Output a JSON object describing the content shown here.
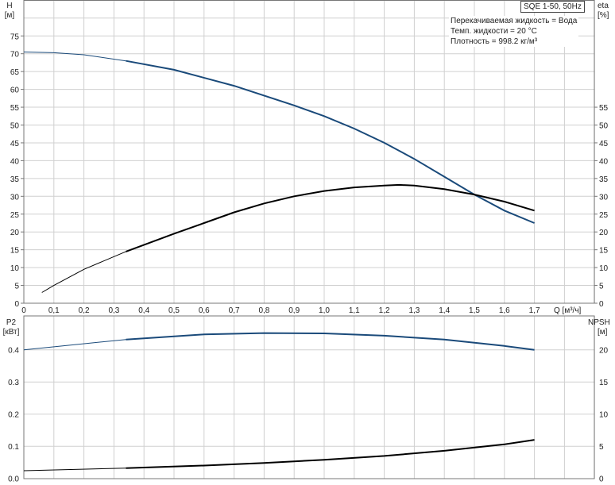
{
  "model_label": "SQE 1-50, 50Hz",
  "legend_lines": [
    "Перекачиваемая жидкость = Вода",
    "Темп. жидкости = 20 °C",
    "Плотность = 998.2 кг/м³"
  ],
  "chart_data": [
    {
      "type": "line",
      "xlabel": "Q [м³/ч]",
      "ylabel_left": [
        "H",
        "[м]"
      ],
      "ylabel_right": [
        "eta",
        "[%]"
      ],
      "xlim": [
        0,
        1.9
      ],
      "x_ticks": [
        "0",
        "0,1",
        "0,2",
        "0,3",
        "0,4",
        "0,5",
        "0,6",
        "0,7",
        "0,8",
        "0,9",
        "1,0",
        "1,1",
        "1,2",
        "1,3",
        "1,4",
        "1,5",
        "1,6",
        "1,7"
      ],
      "ylim_left": [
        0,
        80
      ],
      "y_ticks_left": [
        "0",
        "5",
        "10",
        "15",
        "20",
        "25",
        "30",
        "35",
        "40",
        "45",
        "50",
        "55",
        "60",
        "65",
        "70",
        "75"
      ],
      "y_ticks_right": [
        "0",
        "5",
        "10",
        "15",
        "20",
        "25",
        "30",
        "35",
        "40",
        "45",
        "50",
        "55"
      ],
      "grid": true,
      "series": [
        {
          "axis": "left",
          "color": "#1a4a7a",
          "x": [
            0,
            0.1,
            0.2,
            0.34,
            0.5,
            0.7,
            0.9,
            1.0,
            1.1,
            1.2,
            1.3,
            1.4,
            1.5,
            1.6,
            1.7
          ],
          "y": [
            70.5,
            70.3,
            69.7,
            68,
            65.5,
            61,
            55.5,
            52.5,
            49,
            45,
            40.5,
            35.5,
            30.5,
            26,
            22.5
          ]
        },
        {
          "axis": "right",
          "color": "#000000",
          "x": [
            0.06,
            0.1,
            0.2,
            0.34,
            0.5,
            0.6,
            0.7,
            0.8,
            0.9,
            1.0,
            1.1,
            1.2,
            1.25,
            1.3,
            1.4,
            1.5,
            1.6,
            1.7
          ],
          "y": [
            3,
            5,
            9.5,
            14.5,
            19.5,
            22.5,
            25.5,
            28,
            30,
            31.5,
            32.5,
            33,
            33.2,
            33,
            32,
            30.5,
            28.5,
            26
          ]
        }
      ]
    },
    {
      "type": "line",
      "ylabel_left": [
        "P2",
        "[кВт]"
      ],
      "ylabel_right": [
        "NPSH",
        "[м]"
      ],
      "xlim": [
        0,
        1.9
      ],
      "ylim_left": [
        0,
        0.45
      ],
      "y_ticks_left": [
        "0.0",
        "0.1",
        "0.2",
        "0.3",
        "0.4"
      ],
      "y_ticks_right": [
        "0",
        "5",
        "10",
        "15",
        "20"
      ],
      "grid": true,
      "series": [
        {
          "axis": "left",
          "color": "#1a4a7a",
          "x": [
            0,
            0.34,
            0.6,
            0.8,
            1.0,
            1.2,
            1.4,
            1.6,
            1.7
          ],
          "y": [
            0.4,
            0.432,
            0.448,
            0.452,
            0.451,
            0.444,
            0.432,
            0.412,
            0.4
          ]
        },
        {
          "axis": "right",
          "color": "#000000",
          "x": [
            0,
            0.34,
            0.6,
            0.8,
            1.0,
            1.2,
            1.4,
            1.6,
            1.7
          ],
          "y": [
            1.2,
            1.6,
            2.0,
            2.4,
            2.9,
            3.5,
            4.3,
            5.3,
            6.0
          ]
        }
      ]
    }
  ]
}
